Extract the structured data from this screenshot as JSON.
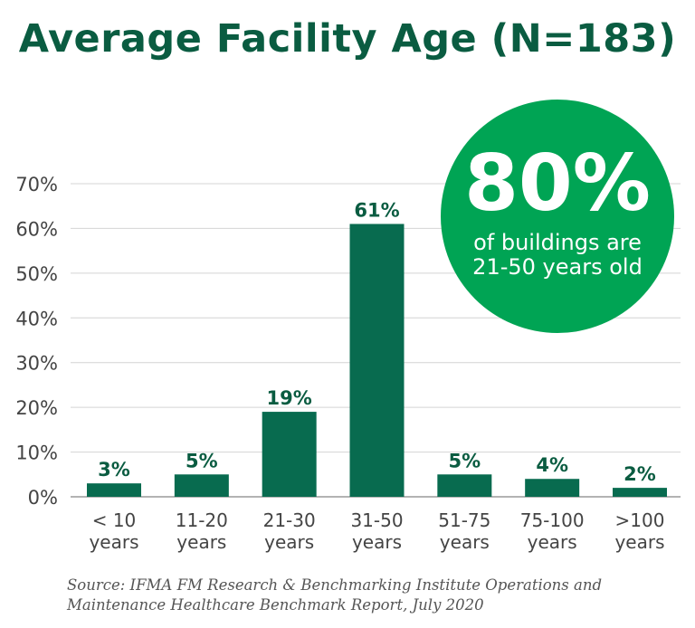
{
  "chart_data": {
    "type": "bar",
    "title": "Average Facility Age (N=183)",
    "categories": [
      [
        "< 10",
        "years"
      ],
      [
        "11-20",
        "years"
      ],
      [
        "21-30",
        "years"
      ],
      [
        "31-50",
        "years"
      ],
      [
        "51-75",
        "years"
      ],
      [
        "75-100",
        "years"
      ],
      [
        ">100",
        "years"
      ]
    ],
    "values": [
      3,
      5,
      19,
      61,
      5,
      4,
      2
    ],
    "value_labels": [
      "3%",
      "5%",
      "19%",
      "61%",
      "5%",
      "4%",
      "2%"
    ],
    "yticks": [
      "0%",
      "10%",
      "20%",
      "30%",
      "40%",
      "50%",
      "60%",
      "70%"
    ],
    "ylim": [
      0,
      70
    ],
    "grid": true,
    "bar_color": "#086b4f",
    "label_color": "#0a5c41"
  },
  "callout": {
    "big": "80%",
    "line1": "of buildings are",
    "line2": "21-50 years old",
    "color": "#00a454"
  },
  "source": {
    "line1": "Source: IFMA FM Research & Benchmarking Institute Operations and",
    "line2": "Maintenance Healthcare Benchmark Report, July 2020"
  }
}
